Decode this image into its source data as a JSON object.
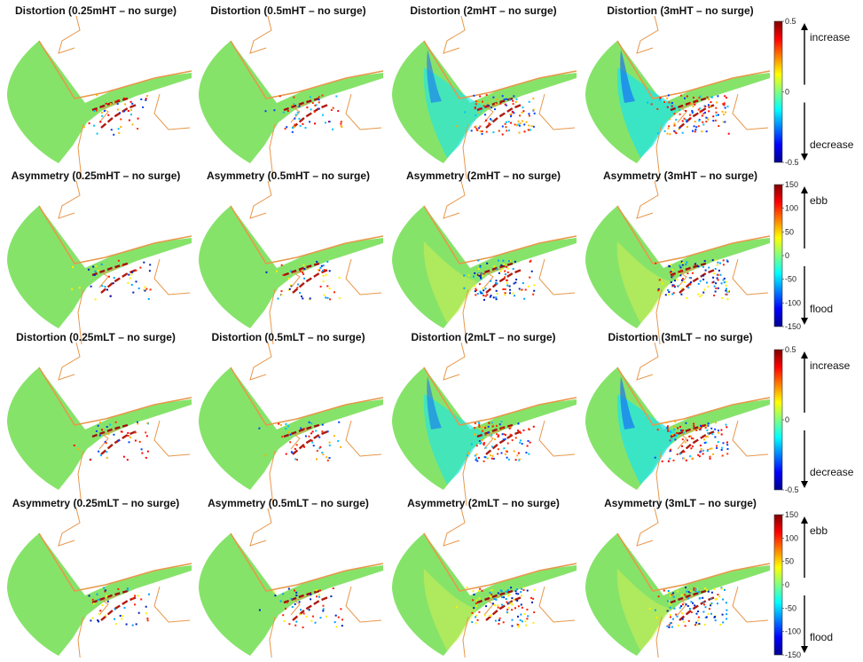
{
  "panel_titles": [
    [
      "Distortion  (0.25mHT – no surge)",
      "Distortion  (0.5mHT – no surge)",
      "Distortion  (2mHT – no surge)",
      "Distortion  (3mHT – no surge)"
    ],
    [
      "Asymmetry (0.25mHT – no surge)",
      "Asymmetry (0.5mHT – no surge)",
      "Asymmetry (2mHT – no surge)",
      "Asymmetry (3mHT – no surge)"
    ],
    [
      "Distortion  (0.25mLT – no surge)",
      "Distortion  (0.5mLT – no surge)",
      "Distortion  (2mLT – no surge)",
      "Distortion  (3mLT – no surge)"
    ],
    [
      "Asymmetry  (0.25mLT – no surge)",
      "Asymmetry  (0.5mLT – no surge)",
      "Asymmetry  (2mLT – no surge)",
      "Asymmetry  (3mLT – no surge)"
    ]
  ],
  "colorbars": [
    {
      "ticks": [
        "0.5",
        "0",
        "-0.5"
      ],
      "upper_label": "increase",
      "lower_label": "decrease"
    },
    {
      "ticks": [
        "150",
        "100",
        "50",
        "0",
        "-50",
        "-100",
        "-150"
      ],
      "upper_label": "ebb",
      "lower_label": "flood"
    },
    {
      "ticks": [
        "0.5",
        "0",
        "-0.5"
      ],
      "upper_label": "increase",
      "lower_label": "decrease"
    },
    {
      "ticks": [
        "150",
        "100",
        "50",
        "0",
        "-50",
        "-100",
        "-150"
      ],
      "upper_label": "ebb",
      "lower_label": "flood"
    }
  ],
  "colormap": [
    "#00008f",
    "#0000ff",
    "#0080ff",
    "#00ffff",
    "#80ff80",
    "#ffff00",
    "#ff8000",
    "#ff0000",
    "#800000"
  ],
  "colors": {
    "domain_fill": "#86e36a",
    "coastline": "#e8974a"
  }
}
